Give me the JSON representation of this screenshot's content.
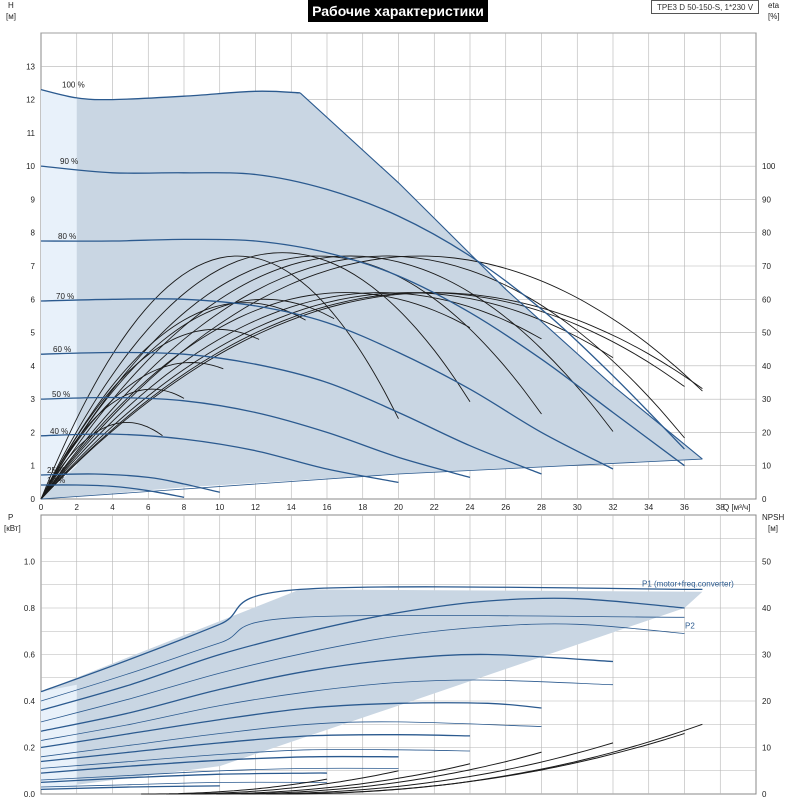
{
  "title": "Рабочие характеристики",
  "model": "TPE3 D 50-150-S, 1*230 V",
  "chart_data": [
    {
      "type": "line",
      "name": "head",
      "ylabel_top": "H",
      "ylabel_unit": "[м]",
      "y2label_top": "eta",
      "y2label_unit": "[%]",
      "xlabel": "Q [м³/ч]",
      "xlim": [
        0,
        40
      ],
      "ylim": [
        0,
        14
      ],
      "y2lim": [
        0,
        140
      ],
      "x_ticks": [
        "0",
        "2",
        "4",
        "6",
        "8",
        "10",
        "12",
        "14",
        "16",
        "18",
        "20",
        "22",
        "24",
        "26",
        "28",
        "30",
        "32",
        "34",
        "36",
        "38"
      ],
      "y_ticks": [
        "0",
        "1",
        "2",
        "3",
        "4",
        "5",
        "6",
        "7",
        "8",
        "9",
        "10",
        "11",
        "12",
        "13"
      ],
      "y2_ticks": [
        "0",
        "10",
        "20",
        "30",
        "40",
        "50",
        "60",
        "70",
        "80",
        "90",
        "100"
      ],
      "speed_labels": [
        "100 %",
        "90 %",
        "80 %",
        "70 %",
        "60 %",
        "50 %",
        "40 %",
        "25 %",
        "10 %"
      ],
      "colors": {
        "curve": "#2b5a8f",
        "area": "#c9d6e3",
        "area_light": "#e8f1fa",
        "eta": "#1a1a1a",
        "grid": "#b5b5b5"
      },
      "envelope": [
        [
          0,
          12.3
        ],
        [
          2,
          12.05
        ],
        [
          4,
          12.0
        ],
        [
          8,
          12.1
        ],
        [
          12,
          12.25
        ],
        [
          14.5,
          12.2
        ],
        [
          20,
          9.5
        ],
        [
          26,
          6.3
        ],
        [
          32,
          3.4
        ],
        [
          37,
          1.2
        ],
        [
          20,
          0.75
        ],
        [
          8,
          0.35
        ],
        [
          0,
          0
        ]
      ],
      "head_curves": [
        {
          "label": "100 %",
          "points": [
            [
              0,
              12.3
            ],
            [
              2,
              12.05
            ],
            [
              4,
              12.0
            ],
            [
              8,
              12.1
            ],
            [
              12,
              12.25
            ],
            [
              14.5,
              12.2
            ]
          ]
        },
        {
          "label": "90 %",
          "points": [
            [
              0,
              10.0
            ],
            [
              4,
              9.8
            ],
            [
              8,
              9.8
            ],
            [
              12,
              9.75
            ],
            [
              16,
              9.3
            ],
            [
              20,
              8.5
            ],
            [
              24,
              7.3
            ],
            [
              28,
              5.7
            ],
            [
              32,
              3.7
            ],
            [
              36,
              1.5
            ]
          ]
        },
        {
          "label": "80 %",
          "points": [
            [
              0,
              7.75
            ],
            [
              4,
              7.75
            ],
            [
              8,
              7.8
            ],
            [
              12,
              7.75
            ],
            [
              16,
              7.4
            ],
            [
              20,
              6.7
            ],
            [
              24,
              5.6
            ],
            [
              28,
              4.2
            ],
            [
              32,
              2.6
            ],
            [
              36,
              1.0
            ]
          ]
        },
        {
          "label": "70 %",
          "points": [
            [
              0,
              5.95
            ],
            [
              4,
              6.0
            ],
            [
              8,
              6.0
            ],
            [
              12,
              5.8
            ],
            [
              16,
              5.3
            ],
            [
              20,
              4.4
            ],
            [
              24,
              3.3
            ],
            [
              28,
              2.0
            ],
            [
              32,
              0.9
            ]
          ]
        },
        {
          "label": "60 %",
          "points": [
            [
              0,
              4.35
            ],
            [
              4,
              4.4
            ],
            [
              8,
              4.35
            ],
            [
              12,
              4.05
            ],
            [
              16,
              3.5
            ],
            [
              20,
              2.6
            ],
            [
              24,
              1.6
            ],
            [
              28,
              0.75
            ]
          ]
        },
        {
          "label": "50 %",
          "points": [
            [
              0,
              3.0
            ],
            [
              4,
              3.05
            ],
            [
              8,
              2.95
            ],
            [
              12,
              2.6
            ],
            [
              16,
              2.0
            ],
            [
              20,
              1.25
            ],
            [
              24,
              0.65
            ]
          ]
        },
        {
          "label": "40 %",
          "points": [
            [
              0,
              1.9
            ],
            [
              4,
              1.95
            ],
            [
              8,
              1.8
            ],
            [
              12,
              1.45
            ],
            [
              16,
              0.9
            ],
            [
              20,
              0.5
            ]
          ]
        },
        {
          "label": "25 %",
          "points": [
            [
              0,
              0.72
            ],
            [
              3,
              0.75
            ],
            [
              6,
              0.65
            ],
            [
              8,
              0.45
            ],
            [
              10,
              0.2
            ]
          ]
        },
        {
          "label": "10 %",
          "points": [
            [
              0,
              0.42
            ],
            [
              2,
              0.42
            ],
            [
              4,
              0.38
            ],
            [
              6,
              0.25
            ],
            [
              8,
              0.05
            ]
          ]
        }
      ],
      "eta_curves": [
        {
          "q0": 4.8,
          "peak": 23,
          "span": 6.8
        },
        {
          "q0": 6.2,
          "peak": 33,
          "span": 8.0
        },
        {
          "q0": 8.4,
          "peak": 41,
          "span": 10.2
        },
        {
          "q0": 9.8,
          "peak": 51,
          "span": 12.2
        },
        {
          "q0": 11.4,
          "peak": 59,
          "span": 14.8
        },
        {
          "q0": 12.5,
          "peak": 60,
          "span": 16.4
        },
        {
          "q0": 11.0,
          "peak": 73,
          "span": 20.0
        },
        {
          "q0": 13.5,
          "peak": 74,
          "span": 24.0
        },
        {
          "q0": 15.5,
          "peak": 73,
          "span": 28.0
        },
        {
          "q0": 17.3,
          "peak": 73,
          "span": 32.0
        },
        {
          "q0": 19.3,
          "peak": 73,
          "span": 36.0
        },
        {
          "q0": 21.2,
          "peak": 73,
          "span": 37.0
        },
        {
          "q0": 17.0,
          "peak": 62,
          "span": 24.0
        },
        {
          "q0": 19.0,
          "peak": 62,
          "span": 28.0
        },
        {
          "q0": 20.5,
          "peak": 62,
          "span": 32.0
        },
        {
          "q0": 21.5,
          "peak": 62,
          "span": 36.0
        },
        {
          "q0": 22.0,
          "peak": 62,
          "span": 37.0
        }
      ]
    },
    {
      "type": "line",
      "name": "power",
      "ylabel_top": "P",
      "ylabel_unit": "[кВт]",
      "y2label_top": "NPSH",
      "y2label_unit": "[м]",
      "xlim": [
        0,
        40
      ],
      "ylim": [
        0,
        1.2
      ],
      "y2lim": [
        0,
        60
      ],
      "y_ticks": [
        "0.0",
        "0.2",
        "0.4",
        "0.6",
        "0.8",
        "1.0"
      ],
      "y2_ticks": [
        "0",
        "10",
        "20",
        "30",
        "40",
        "50"
      ],
      "series_labels": [
        "P1 (motor+freq.converter)",
        "P2"
      ],
      "envelope": [
        [
          0,
          0.44
        ],
        [
          14.5,
          0.88
        ],
        [
          37,
          0.87
        ],
        [
          36,
          0.8
        ],
        [
          20,
          0.38
        ],
        [
          10,
          0.12
        ],
        [
          0,
          0.02
        ]
      ],
      "p1_curves": [
        [
          [
            0,
            0.44
          ],
          [
            5,
            0.58
          ],
          [
            10,
            0.73
          ],
          [
            14.5,
            0.88
          ],
          [
            37,
            0.88
          ]
        ],
        [
          [
            0,
            0.36
          ],
          [
            5,
            0.47
          ],
          [
            10,
            0.6
          ],
          [
            15,
            0.7
          ],
          [
            20,
            0.78
          ],
          [
            25,
            0.83
          ],
          [
            30,
            0.84
          ],
          [
            36,
            0.8
          ]
        ],
        [
          [
            0,
            0.27
          ],
          [
            5,
            0.35
          ],
          [
            10,
            0.45
          ],
          [
            15,
            0.53
          ],
          [
            20,
            0.58
          ],
          [
            25,
            0.6
          ],
          [
            32,
            0.57
          ]
        ],
        [
          [
            0,
            0.2
          ],
          [
            5,
            0.26
          ],
          [
            10,
            0.32
          ],
          [
            15,
            0.37
          ],
          [
            20,
            0.39
          ],
          [
            25,
            0.39
          ],
          [
            28,
            0.37
          ]
        ],
        [
          [
            0,
            0.14
          ],
          [
            5,
            0.18
          ],
          [
            10,
            0.22
          ],
          [
            15,
            0.25
          ],
          [
            20,
            0.255
          ],
          [
            24,
            0.25
          ]
        ],
        [
          [
            0,
            0.09
          ],
          [
            5,
            0.12
          ],
          [
            10,
            0.145
          ],
          [
            15,
            0.16
          ],
          [
            20,
            0.16
          ]
        ],
        [
          [
            0,
            0.05
          ],
          [
            5,
            0.07
          ],
          [
            10,
            0.085
          ],
          [
            15,
            0.09
          ],
          [
            16,
            0.09
          ]
        ],
        [
          [
            0,
            0.02
          ],
          [
            5,
            0.03
          ],
          [
            10,
            0.035
          ]
        ]
      ],
      "p2_curves": [
        [
          [
            0,
            0.4
          ],
          [
            5,
            0.52
          ],
          [
            10,
            0.65
          ],
          [
            14.5,
            0.76
          ],
          [
            36,
            0.76
          ]
        ],
        [
          [
            0,
            0.31
          ],
          [
            5,
            0.41
          ],
          [
            10,
            0.52
          ],
          [
            15,
            0.61
          ],
          [
            20,
            0.68
          ],
          [
            25,
            0.72
          ],
          [
            30,
            0.73
          ],
          [
            36,
            0.69
          ]
        ],
        [
          [
            0,
            0.23
          ],
          [
            5,
            0.3
          ],
          [
            10,
            0.38
          ],
          [
            15,
            0.44
          ],
          [
            20,
            0.48
          ],
          [
            25,
            0.49
          ],
          [
            32,
            0.47
          ]
        ],
        [
          [
            0,
            0.16
          ],
          [
            5,
            0.21
          ],
          [
            10,
            0.26
          ],
          [
            15,
            0.3
          ],
          [
            20,
            0.31
          ],
          [
            28,
            0.29
          ]
        ],
        [
          [
            0,
            0.11
          ],
          [
            5,
            0.14
          ],
          [
            10,
            0.17
          ],
          [
            15,
            0.19
          ],
          [
            20,
            0.19
          ],
          [
            24,
            0.185
          ]
        ],
        [
          [
            0,
            0.06
          ],
          [
            5,
            0.08
          ],
          [
            10,
            0.1
          ],
          [
            15,
            0.11
          ],
          [
            20,
            0.11
          ]
        ],
        [
          [
            0,
            0.03
          ],
          [
            5,
            0.04
          ],
          [
            10,
            0.05
          ],
          [
            16,
            0.05
          ]
        ]
      ],
      "npsh_curves": [
        {
          "end": [
            37,
            15
          ],
          "start": [
            0,
            0
          ]
        },
        {
          "end": [
            36,
            13
          ],
          "start": [
            0,
            0
          ]
        },
        {
          "end": [
            32,
            11
          ],
          "start": [
            0,
            0
          ]
        },
        {
          "end": [
            28,
            9
          ],
          "start": [
            0,
            0
          ]
        },
        {
          "end": [
            24,
            6.5
          ],
          "start": [
            0,
            0
          ]
        },
        {
          "end": [
            20,
            5
          ],
          "start": [
            0,
            0
          ]
        },
        {
          "end": [
            16,
            3.2
          ],
          "start": [
            0,
            0
          ]
        }
      ]
    }
  ]
}
